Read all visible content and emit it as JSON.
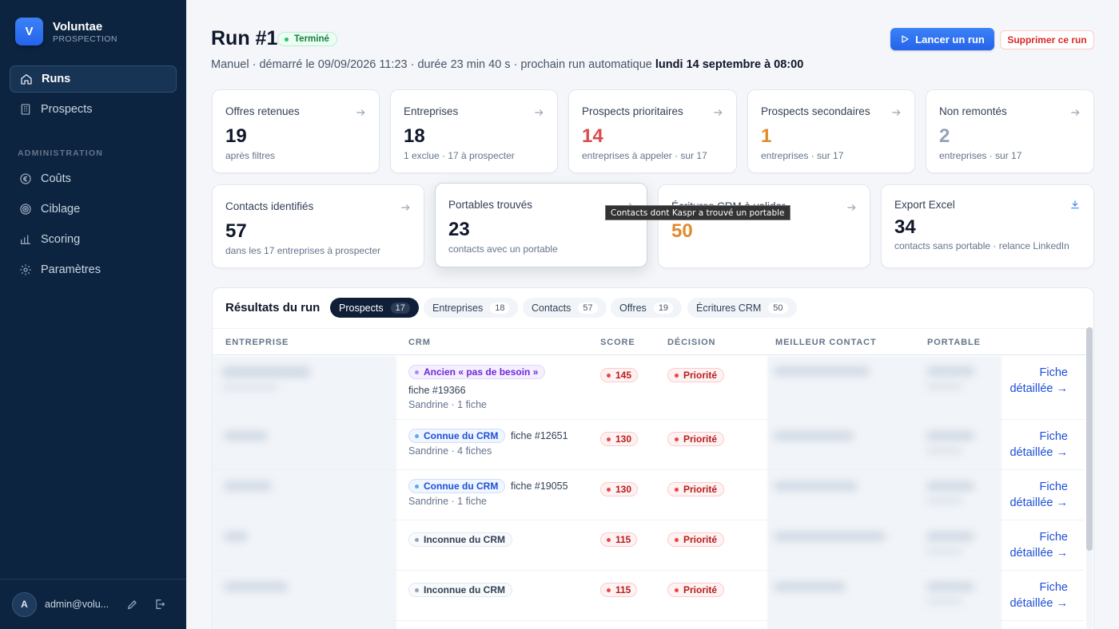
{
  "brand": {
    "name": "Voluntae",
    "subtitle": "PROSPECTION",
    "logo_letter": "V"
  },
  "sidebar": {
    "items": [
      {
        "label": "Runs",
        "icon": "home-icon",
        "active": true
      },
      {
        "label": "Prospects",
        "icon": "building-icon",
        "active": false
      }
    ],
    "section_label": "ADMINISTRATION",
    "admin_items": [
      {
        "label": "Coûts",
        "icon": "euro-icon"
      },
      {
        "label": "Ciblage",
        "icon": "target-icon"
      },
      {
        "label": "Scoring",
        "icon": "bar-chart-icon"
      },
      {
        "label": "Paramètres",
        "icon": "gear-icon"
      }
    ],
    "user": {
      "initial": "A",
      "email": "admin@volu..."
    }
  },
  "header": {
    "title": "Run #1",
    "status": "Terminé",
    "subline_prefix": "Manuel · démarré le 09/09/2026 11:23 · durée 23 min 40 s · prochain run automatique ",
    "subline_bold": "lundi 14 septembre à 08:00",
    "primary_button": "Lancer un run",
    "danger_button": "Supprimer ce run"
  },
  "cards_row1": [
    {
      "label": "Offres retenues",
      "value": "19",
      "sub": "après filtres",
      "tone": "default"
    },
    {
      "label": "Entreprises",
      "value": "18",
      "sub": "1 exclue · 17 à prospecter",
      "tone": "default"
    },
    {
      "label": "Prospects prioritaires",
      "value": "14",
      "sub": "entreprises à appeler · sur 17",
      "tone": "red"
    },
    {
      "label": "Prospects secondaires",
      "value": "1",
      "sub": "entreprises · sur 17",
      "tone": "orange"
    },
    {
      "label": "Non remontés",
      "value": "2",
      "sub": "entreprises · sur 17",
      "tone": "gray"
    }
  ],
  "cards_row2": [
    {
      "label": "Contacts identifiés",
      "value": "57",
      "sub": "dans les 17 entreprises à prospecter",
      "tone": "default"
    },
    {
      "label": "Portables trouvés",
      "value": "23",
      "sub": "contacts avec un portable",
      "tone": "default"
    },
    {
      "label": "Écritures CRM à valider",
      "value": "50",
      "sub": "",
      "tone": "orange"
    },
    {
      "label": "Export Excel",
      "value": "34",
      "sub": "contacts sans portable · relance LinkedIn",
      "tone": "default"
    }
  ],
  "tooltip": "Contacts dont Kaspr a trouvé un portable",
  "results": {
    "title": "Résultats du run",
    "tabs": [
      {
        "label": "Prospects",
        "count": "17",
        "active": true
      },
      {
        "label": "Entreprises",
        "count": "18",
        "active": false
      },
      {
        "label": "Contacts",
        "count": "57",
        "active": false
      },
      {
        "label": "Offres",
        "count": "19",
        "active": false
      },
      {
        "label": "Écritures CRM",
        "count": "50",
        "active": false
      }
    ],
    "columns": [
      "ENTREPRISE",
      "CRM",
      "SCORE",
      "DÉCISION",
      "MEILLEUR CONTACT",
      "PORTABLE"
    ],
    "rows": [
      {
        "crm_status": "Ancien « pas de besoin »",
        "crm_tone": "purple",
        "fiche": "fiche #19366",
        "owner": "Sandrine · 1 fiche",
        "score": "145",
        "decision": "Priorité",
        "link": "Fiche\ndétaillée →"
      },
      {
        "crm_status": "Connue du CRM",
        "crm_tone": "blue",
        "fiche": "fiche #12651",
        "owner": "Sandrine · 4 fiches",
        "score": "130",
        "decision": "Priorité",
        "link": "Fiche\ndétaillée →"
      },
      {
        "crm_status": "Connue du CRM",
        "crm_tone": "blue",
        "fiche": "fiche #19055",
        "owner": "Sandrine · 1 fiche",
        "score": "130",
        "decision": "Priorité",
        "link": "Fiche\ndétaillée →"
      },
      {
        "crm_status": "Inconnue du CRM",
        "crm_tone": "gray",
        "fiche": "",
        "owner": "",
        "score": "115",
        "decision": "Priorité",
        "link": "Fiche\ndétaillée →"
      },
      {
        "crm_status": "Inconnue du CRM",
        "crm_tone": "gray",
        "fiche": "",
        "owner": "",
        "score": "115",
        "decision": "Priorité",
        "link": "Fiche\ndétaillée →"
      }
    ]
  }
}
